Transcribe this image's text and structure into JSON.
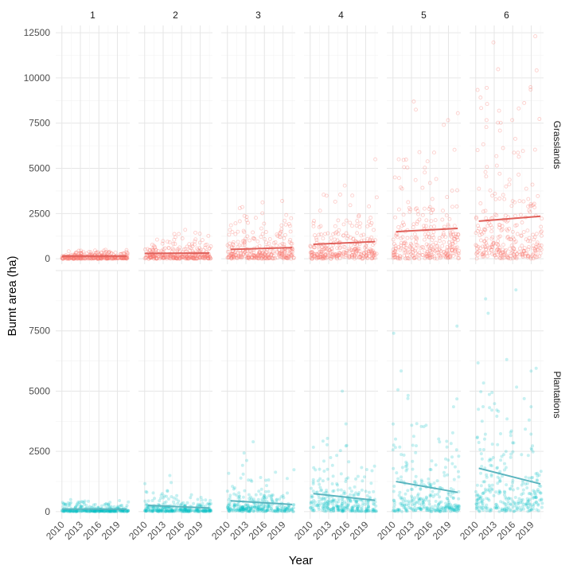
{
  "chart_data": {
    "type": "scatter",
    "xlabel": "Year",
    "ylabel": "Burnt area (ha)",
    "facet_columns": [
      "1",
      "2",
      "3",
      "4",
      "5",
      "6"
    ],
    "facet_rows": [
      "Grasslands",
      "Plantations"
    ],
    "x_ticks": [
      2010,
      2013,
      2016,
      2019
    ],
    "xlim": [
      2009,
      2021
    ],
    "rows": [
      {
        "name": "Grasslands",
        "color": "#F8766D",
        "point_style": "open-circle",
        "y_ticks": [
          0,
          2500,
          5000,
          7500,
          10000,
          12500
        ],
        "ylim": [
          -300,
          12900
        ],
        "panels": [
          {
            "facet": "1",
            "trend": {
              "x": [
                2010,
                2020.5
              ],
              "y": [
                150,
                150
              ]
            },
            "max_observed": 500
          },
          {
            "facet": "2",
            "trend": {
              "x": [
                2010,
                2020.5
              ],
              "y": [
                300,
                320
              ]
            },
            "max_observed": 1600
          },
          {
            "facet": "3",
            "trend": {
              "x": [
                2010.5,
                2020.5
              ],
              "y": [
                520,
                620
              ]
            },
            "max_observed": 3200
          },
          {
            "facet": "4",
            "trend": {
              "x": [
                2010.5,
                2020.5
              ],
              "y": [
                800,
                950
              ]
            },
            "max_observed": 5500
          },
          {
            "facet": "5",
            "trend": {
              "x": [
                2010.5,
                2020.5
              ],
              "y": [
                1500,
                1680
              ]
            },
            "max_observed": 8700
          },
          {
            "facet": "6",
            "trend": {
              "x": [
                2010.5,
                2020.5
              ],
              "y": [
                2080,
                2350
              ]
            },
            "max_observed": 12300
          }
        ]
      },
      {
        "name": "Plantations",
        "color": "#00BFC4",
        "point_style": "filled-circle",
        "y_ticks": [
          0,
          2500,
          5000,
          7500
        ],
        "ylim": [
          -300,
          10000
        ],
        "panels": [
          {
            "facet": "1",
            "trend": {
              "x": [
                2010,
                2020.5
              ],
              "y": [
                110,
                100
              ]
            },
            "max_observed": 500
          },
          {
            "facet": "2",
            "trend": {
              "x": [
                2010.5,
                2020.5
              ],
              "y": [
                260,
                150
              ]
            },
            "max_observed": 1500
          },
          {
            "facet": "3",
            "trend": {
              "x": [
                2010.5,
                2020.5
              ],
              "y": [
                450,
                300
              ]
            },
            "max_observed": 2900
          },
          {
            "facet": "4",
            "trend": {
              "x": [
                2010.5,
                2020.5
              ],
              "y": [
                750,
                470
              ]
            },
            "max_observed": 5000
          },
          {
            "facet": "5",
            "trend": {
              "x": [
                2010.5,
                2020.5
              ],
              "y": [
                1250,
                800
              ]
            },
            "max_observed": 7700
          },
          {
            "facet": "6",
            "trend": {
              "x": [
                2010.5,
                2020.5
              ],
              "y": [
                1800,
                1150
              ]
            },
            "max_observed": 9200
          }
        ]
      }
    ]
  }
}
